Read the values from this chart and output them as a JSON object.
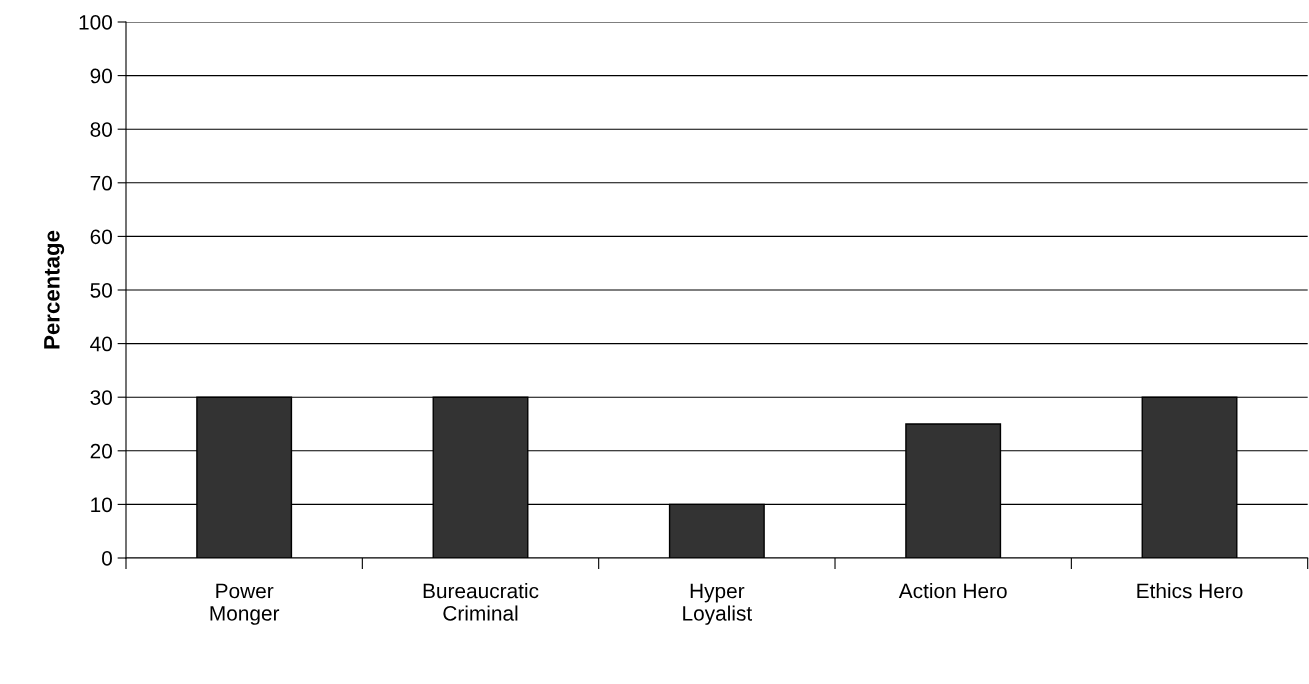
{
  "chart_data": {
    "type": "bar",
    "ylabel": "Percentage",
    "categories": [
      "Power\nMonger",
      "Bureaucratic\nCriminal",
      "Hyper\nLoyalist",
      "Action Hero",
      "Ethics Hero"
    ],
    "values": [
      30,
      30,
      10,
      25,
      30
    ],
    "color": "#333333",
    "ylim": [
      0,
      100
    ],
    "yticks": [
      0,
      10,
      20,
      30,
      40,
      50,
      60,
      70,
      80,
      90,
      100
    ],
    "grid": "y"
  }
}
